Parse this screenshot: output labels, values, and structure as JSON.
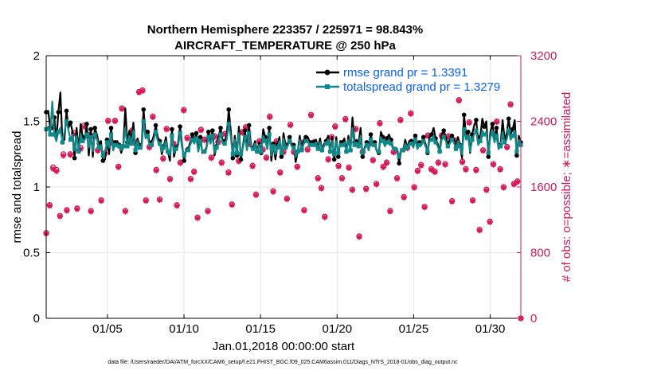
{
  "chart_data": {
    "type": "line",
    "title_line1": "Northern Hemisphere 223357 / 225971 = 98.843%",
    "title_line2": "AIRCRAFT_TEMPERATURE @ 250 hPa",
    "xlabel": "Jan.01,2018 00:00:00 start",
    "ylabel_left": "rmse and totalspread",
    "ylabel_right": "# of obs: o=possible; ∗=assimilated",
    "footer": "data file: /Users/raeder/DAI/ATM_forcXX/CAM6_setup/f.e21.FHIST_BGC.f09_025.CAM6assim.011/Diags_NTrS_2018-01/obs_diag_output.nc",
    "xlim": [
      1,
      32
    ],
    "ylim_left": [
      0,
      2
    ],
    "ylim_right": [
      0,
      3200
    ],
    "x_ticks": [
      5,
      10,
      15,
      20,
      25,
      30
    ],
    "x_tick_labels": [
      "01/05",
      "01/10",
      "01/15",
      "01/20",
      "01/25",
      "01/30"
    ],
    "y_left_ticks": [
      0,
      0.5,
      1,
      1.5,
      2
    ],
    "y_left_tick_labels": [
      "0",
      "0.5",
      "1",
      "1.5",
      "2"
    ],
    "y_right_ticks": [
      0,
      800,
      1600,
      2400,
      3200
    ],
    "y_right_tick_labels": [
      "0",
      "800",
      "1600",
      "2400",
      "3200"
    ],
    "colors": {
      "rmse": "#000000",
      "spread": "#0f8a8a",
      "obs": "#d6185a",
      "legend_text": "#0a5fff"
    },
    "series": [
      {
        "name": "rmse grand pr = 1.3391",
        "axis": "left",
        "values": [
          1.57,
          1.58,
          1.45,
          1.44,
          1.53,
          1.35,
          1.57,
          1.72,
          1.34,
          1.36,
          1.58,
          1.45,
          1.49,
          1.42,
          1.22,
          1.45,
          1.28,
          1.48,
          1.38,
          1.36,
          1.48,
          1.24,
          1.44,
          1.23,
          1.45,
          1.4,
          1.33,
          1.35,
          1.2,
          1.21,
          1.36,
          1.25,
          1.45,
          1.28,
          1.34,
          1.35,
          1.32,
          1.26,
          1.31,
          1.6,
          1.34,
          1.43,
          1.36,
          1.49,
          1.26,
          1.37,
          1.32,
          1.3,
          1.59,
          1.4,
          1.42,
          1.33,
          1.34,
          1.39,
          1.47,
          1.38,
          1.35,
          1.25,
          1.31,
          1.38,
          1.27,
          1.2,
          1.44,
          1.23,
          1.3,
          1.33,
          1.46,
          1.32,
          1.2,
          1.29,
          1.29,
          1.34,
          1.4,
          1.36,
          1.41,
          1.27,
          1.38,
          1.26,
          1.27,
          1.3,
          1.42,
          1.35,
          1.43,
          1.24,
          1.31,
          1.39,
          1.45,
          1.35,
          1.35,
          1.39,
          1.59,
          1.43,
          1.22,
          1.39,
          1.24,
          1.46,
          1.21,
          1.31,
          1.43,
          1.29,
          1.47,
          1.31,
          1.3,
          1.35,
          1.27,
          1.34,
          1.26,
          1.44,
          1.38,
          1.29,
          1.45,
          1.2,
          1.33,
          1.21,
          1.32,
          1.38,
          1.23,
          1.41,
          1.32,
          1.33,
          1.38,
          1.33,
          1.32,
          1.19,
          1.27,
          1.39,
          1.29,
          1.36,
          1.38,
          1.38,
          1.34,
          1.35,
          1.34,
          1.36,
          1.3,
          1.37,
          1.28,
          1.33,
          1.35,
          1.39,
          1.27,
          1.38,
          1.21,
          1.38,
          1.23,
          1.35,
          1.34,
          1.37,
          1.27,
          1.39,
          1.28,
          1.53,
          1.34,
          1.36,
          1.33,
          1.45,
          1.23,
          1.3,
          1.34,
          1.28,
          1.4,
          1.33,
          1.34,
          1.27,
          1.26,
          1.42,
          1.38,
          1.33,
          1.37,
          1.4,
          1.36,
          1.3,
          1.29,
          1.29,
          1.18,
          1.29,
          1.28,
          1.36,
          1.3,
          1.35,
          1.35,
          1.31,
          1.39,
          1.29,
          1.34,
          1.34,
          1.38,
          1.33,
          1.26,
          1.38,
          1.4,
          1.45,
          1.37,
          1.33,
          1.27,
          1.4,
          1.43,
          1.38,
          1.33,
          1.36,
          1.39,
          1.37,
          1.3,
          1.38,
          1.32,
          1.22,
          1.55,
          1.4,
          1.42,
          1.26,
          1.4,
          1.47,
          1.51,
          1.34,
          1.38,
          1.52,
          1.46,
          1.5,
          1.23,
          1.42,
          1.48,
          1.37,
          1.45,
          1.29,
          1.32,
          1.51,
          1.37,
          1.4,
          1.52,
          1.4,
          1.44,
          1.51,
          1.24,
          1.39,
          1.34
        ]
      },
      {
        "name": "totalspread grand pr = 1.3279",
        "axis": "left",
        "values": [
          1.44,
          1.46,
          1.4,
          1.65,
          1.4,
          1.35,
          1.42,
          1.45,
          1.34,
          1.42,
          1.5,
          1.43,
          1.36,
          1.4,
          1.29,
          1.39,
          1.27,
          1.4,
          1.35,
          1.36,
          1.4,
          1.3,
          1.38,
          1.27,
          1.4,
          1.37,
          1.3,
          1.32,
          1.24,
          1.27,
          1.34,
          1.3,
          1.4,
          1.28,
          1.32,
          1.33,
          1.31,
          1.28,
          1.31,
          1.45,
          1.31,
          1.39,
          1.33,
          1.43,
          1.28,
          1.35,
          1.3,
          1.29,
          1.5,
          1.37,
          1.39,
          1.31,
          1.32,
          1.36,
          1.42,
          1.35,
          1.33,
          1.27,
          1.3,
          1.35,
          1.27,
          1.24,
          1.39,
          1.26,
          1.29,
          1.31,
          1.41,
          1.3,
          1.24,
          1.28,
          1.28,
          1.32,
          1.36,
          1.33,
          1.37,
          1.27,
          1.35,
          1.27,
          1.27,
          1.29,
          1.38,
          1.33,
          1.39,
          1.26,
          1.3,
          1.36,
          1.4,
          1.33,
          1.33,
          1.36,
          1.48,
          1.38,
          1.25,
          1.36,
          1.26,
          1.41,
          1.25,
          1.3,
          1.38,
          1.28,
          1.41,
          1.3,
          1.29,
          1.33,
          1.27,
          1.32,
          1.27,
          1.39,
          1.35,
          1.29,
          1.4,
          1.24,
          1.31,
          1.25,
          1.3,
          1.35,
          1.26,
          1.37,
          1.3,
          1.31,
          1.35,
          1.31,
          1.3,
          1.23,
          1.27,
          1.36,
          1.28,
          1.33,
          1.35,
          1.35,
          1.32,
          1.33,
          1.32,
          1.34,
          1.29,
          1.34,
          1.28,
          1.31,
          1.33,
          1.36,
          1.27,
          1.35,
          1.25,
          1.35,
          1.26,
          1.33,
          1.32,
          1.34,
          1.27,
          1.36,
          1.28,
          1.45,
          1.32,
          1.34,
          1.31,
          1.39,
          1.26,
          1.29,
          1.32,
          1.28,
          1.36,
          1.31,
          1.32,
          1.27,
          1.27,
          1.38,
          1.35,
          1.31,
          1.34,
          1.36,
          1.33,
          1.29,
          1.29,
          1.29,
          1.23,
          1.29,
          1.28,
          1.33,
          1.3,
          1.33,
          1.33,
          1.3,
          1.36,
          1.29,
          1.32,
          1.32,
          1.35,
          1.31,
          1.27,
          1.35,
          1.36,
          1.39,
          1.34,
          1.31,
          1.27,
          1.36,
          1.38,
          1.35,
          1.31,
          1.33,
          1.36,
          1.34,
          1.29,
          1.35,
          1.31,
          1.25,
          1.44,
          1.36,
          1.38,
          1.27,
          1.36,
          1.4,
          1.43,
          1.32,
          1.35,
          1.43,
          1.4,
          1.42,
          1.26,
          1.38,
          1.41,
          1.34,
          1.39,
          1.29,
          1.31,
          1.42,
          1.34,
          1.36,
          1.43,
          1.36,
          1.39,
          1.43,
          1.27,
          1.36,
          1.32
        ]
      },
      {
        "name": "obs possible",
        "axis": "right",
        "marker": "o",
        "values": [
          1040,
          1380,
          1840,
          1810,
          1250,
          2000,
          1320,
          2000,
          2260,
          1340,
          2080,
          2350,
          2240,
          1310,
          2230,
          2050,
          1440,
          2010,
          2410,
          2150,
          2410,
          1850,
          2560,
          1310,
          2140,
          2290,
          2140,
          2760,
          2780,
          1440,
          2090,
          2460,
          1810,
          1450,
          1950,
          2310,
          1700,
          2130,
          1380,
          1900,
          2540,
          2200,
          1700,
          1790,
          1230,
          2300,
          2180,
          1310,
          1960,
          2220,
          2150,
          1900,
          2250,
          1780,
          1390,
          2120,
          1920,
          2270,
          2330,
          2130,
          1860,
          1510,
          2160,
          2060,
          1960,
          2460,
          1550,
          2160,
          1780,
          2030,
          1460,
          2360,
          2030,
          1850,
          2140,
          1320,
          2060,
          2480,
          2150,
          1710,
          1590,
          1240,
          1940,
          2210,
          2340,
          1860,
          1710,
          2430,
          1840,
          1570,
          2310,
          1000,
          2030,
          1580,
          2130,
          1930,
          1640,
          2380,
          1850,
          1900,
          1310,
          2030,
          1710,
          2420,
          1480,
          2080,
          2500,
          1600,
          1800,
          1870,
          1360,
          2230,
          1820,
          1790,
          1900,
          2230,
          1880,
          2220,
          1430,
          2170,
          2660,
          1910,
          1820,
          2390,
          1440,
          1810,
          1080,
          2050,
          1570,
          1180,
          1880,
          2400,
          1820,
          1600,
          2090,
          2610,
          1640,
          1670,
          0
        ]
      },
      {
        "name": "obs assimilated",
        "axis": "right",
        "marker": "*",
        "values": [
          1030,
          1370,
          1820,
          1790,
          1240,
          1980,
          1310,
          1990,
          2240,
          1330,
          2060,
          2330,
          2220,
          1300,
          2210,
          2040,
          1430,
          2000,
          2400,
          2140,
          2400,
          1840,
          2550,
          1300,
          2130,
          2280,
          2130,
          2750,
          2770,
          1430,
          2080,
          2450,
          1800,
          1440,
          1940,
          2300,
          1690,
          2120,
          1370,
          1890,
          2530,
          2190,
          1690,
          1780,
          1220,
          2290,
          2170,
          1300,
          1950,
          2210,
          2140,
          1890,
          2240,
          1770,
          1380,
          2110,
          1910,
          2260,
          2320,
          2120,
          1850,
          1500,
          2150,
          2050,
          1950,
          2450,
          1540,
          2150,
          1770,
          2020,
          1450,
          2350,
          2020,
          1840,
          2130,
          1310,
          2050,
          2470,
          2140,
          1700,
          1580,
          1230,
          1930,
          2200,
          2330,
          1850,
          1700,
          2420,
          1830,
          1560,
          2300,
          990,
          2020,
          1570,
          2120,
          1920,
          1630,
          2370,
          1840,
          1890,
          1300,
          2020,
          1700,
          2410,
          1470,
          2070,
          2490,
          1590,
          1790,
          1860,
          1350,
          2220,
          1810,
          1780,
          1890,
          2220,
          1870,
          2210,
          1420,
          2160,
          2650,
          1900,
          1810,
          2380,
          1430,
          1800,
          1070,
          2040,
          1560,
          1170,
          1870,
          2390,
          1810,
          1590,
          2080,
          2600,
          1630,
          1660,
          0
        ]
      }
    ],
    "legend": [
      "rmse grand pr = 1.3391",
      "totalspread grand pr = 1.3279"
    ]
  }
}
